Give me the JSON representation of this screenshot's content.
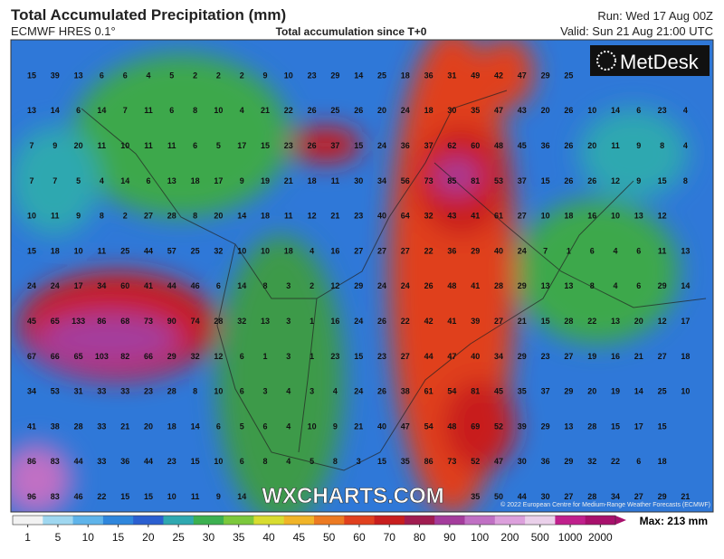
{
  "header": {
    "title": "Total Accumulated Precipitation (mm)",
    "model": "ECMWF HRES 0.1°",
    "subtitle": "Total accumulation since T+0",
    "run": "Run: Wed 17 Aug 00Z",
    "valid": "Valid: Sun 21 Aug 21:00 UTC"
  },
  "logo": "MetDesk",
  "watermark": "WXCHARTS.COM",
  "copyright": "© 2022 European Centre for Medium-Range Weather Forecasts (ECMWF)",
  "max_label": "Max: 213 mm",
  "grid_values": [
    [
      15,
      39,
      13,
      6,
      6,
      4,
      5,
      2,
      2,
      2,
      9,
      10,
      23,
      29,
      14,
      25,
      18,
      36,
      31,
      49,
      42,
      47,
      29,
      25
    ],
    [
      13,
      14,
      6,
      14,
      7,
      11,
      6,
      8,
      10,
      4,
      21,
      22,
      26,
      25,
      26,
      20,
      24,
      18,
      30,
      35,
      47,
      43,
      20,
      26,
      10,
      14,
      6,
      23,
      4
    ],
    [
      7,
      9,
      20,
      11,
      10,
      11,
      11,
      6,
      5,
      17,
      15,
      23,
      26,
      37,
      15,
      24,
      36,
      37,
      62,
      60,
      48,
      45,
      36,
      26,
      20,
      11,
      9,
      8,
      4
    ],
    [
      7,
      7,
      5,
      4,
      14,
      6,
      13,
      18,
      17,
      9,
      19,
      21,
      18,
      11,
      30,
      34,
      56,
      73,
      85,
      81,
      53,
      37,
      15,
      26,
      26,
      12,
      9,
      15,
      8
    ],
    [
      10,
      11,
      9,
      8,
      2,
      27,
      28,
      8,
      20,
      14,
      18,
      11,
      12,
      21,
      23,
      40,
      64,
      32,
      43,
      41,
      61,
      27,
      10,
      18,
      16,
      10,
      13,
      12
    ],
    [
      15,
      18,
      10,
      11,
      25,
      44,
      57,
      25,
      32,
      10,
      10,
      18,
      4,
      16,
      27,
      27,
      27,
      22,
      36,
      29,
      40,
      24,
      7,
      1,
      6,
      4,
      6,
      11,
      13
    ],
    [
      24,
      24,
      17,
      34,
      60,
      41,
      44,
      46,
      6,
      14,
      8,
      3,
      2,
      12,
      29,
      24,
      24,
      26,
      48,
      41,
      28,
      29,
      13,
      13,
      8,
      4,
      6,
      29,
      14
    ],
    [
      45,
      65,
      133,
      86,
      68,
      73,
      90,
      74,
      28,
      32,
      13,
      3,
      1,
      16,
      24,
      26,
      22,
      42,
      41,
      39,
      27,
      21,
      15,
      28,
      22,
      13,
      20,
      12,
      17
    ],
    [
      67,
      66,
      65,
      103,
      82,
      66,
      29,
      32,
      12,
      6,
      1,
      3,
      1,
      23,
      15,
      23,
      27,
      44,
      47,
      40,
      34,
      29,
      23,
      27,
      19,
      16,
      21,
      27,
      18
    ],
    [
      34,
      53,
      31,
      33,
      33,
      23,
      28,
      8,
      10,
      6,
      3,
      4,
      3,
      4,
      24,
      26,
      38,
      61,
      54,
      81,
      45,
      35,
      37,
      29,
      20,
      19,
      14,
      25,
      10
    ],
    [
      41,
      38,
      28,
      33,
      21,
      20,
      18,
      14,
      6,
      5,
      6,
      4,
      10,
      9,
      21,
      40,
      47,
      54,
      48,
      69,
      52,
      39,
      29,
      13,
      28,
      15,
      17,
      15
    ],
    [
      86,
      83,
      44,
      33,
      36,
      44,
      23,
      15,
      10,
      6,
      8,
      4,
      5,
      8,
      3,
      15,
      35,
      86,
      73,
      52,
      47,
      30,
      36,
      29,
      32,
      22,
      6,
      18
    ],
    [
      96,
      83,
      46,
      22,
      15,
      15,
      10,
      11,
      9,
      14,
      35,
      50,
      44,
      30,
      27,
      28,
      34,
      27,
      29,
      21
    ]
  ],
  "colorbar": {
    "ticks": [
      1,
      5,
      10,
      15,
      20,
      25,
      30,
      35,
      40,
      45,
      50,
      60,
      70,
      80,
      90,
      100,
      200,
      500,
      1000,
      2000
    ],
    "colors": [
      "#f2f2f2",
      "#9fd7f0",
      "#5fb4ea",
      "#2f86dc",
      "#2b5fd0",
      "#2fa8b0",
      "#3cb050",
      "#7cc83c",
      "#d8dc30",
      "#f0b428",
      "#ec7a22",
      "#e0401e",
      "#c81e1e",
      "#a01c50",
      "#a43c9c",
      "#c070c4",
      "#dca0dc",
      "#ead0ea",
      "#c0208c",
      "#a8106c"
    ]
  }
}
